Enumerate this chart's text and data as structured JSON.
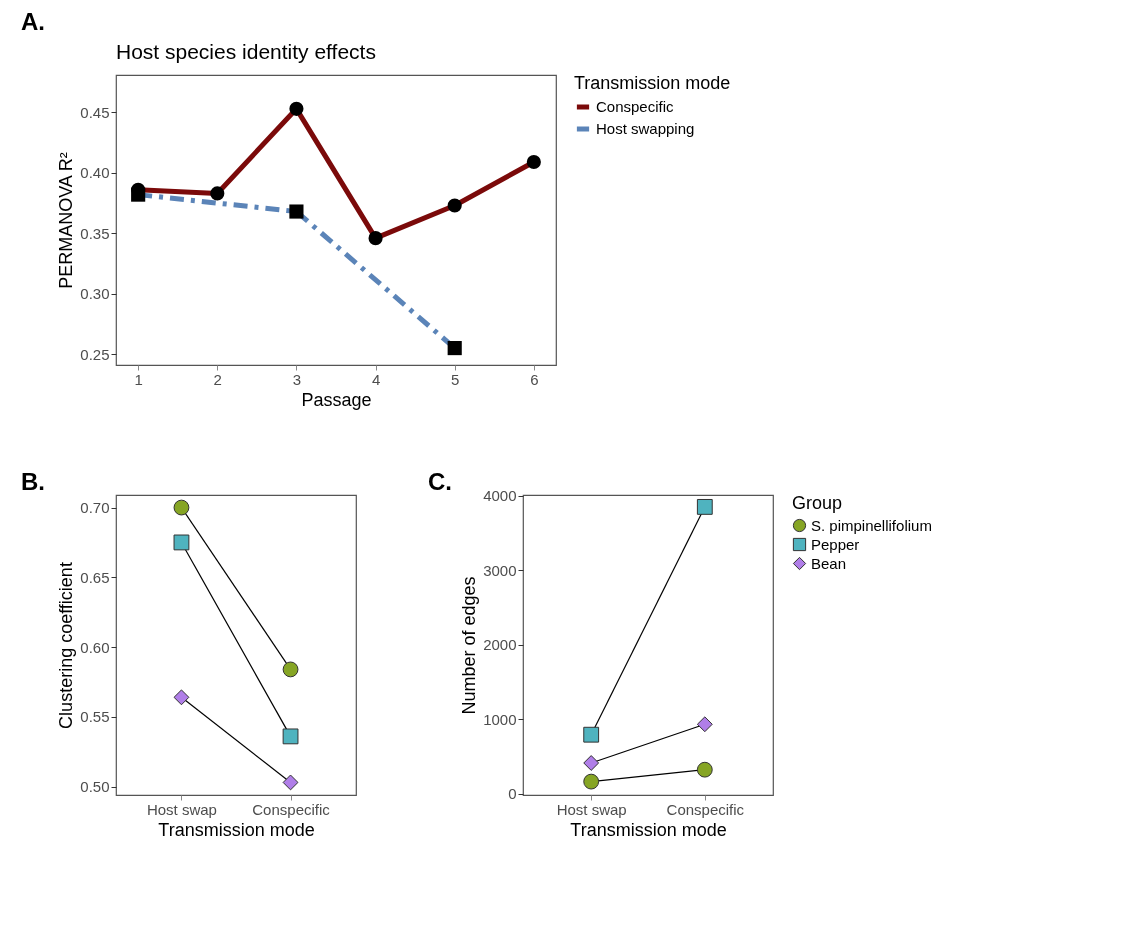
{
  "chart_data": [
    {
      "type": "line",
      "title": "Host species identity effects",
      "xlabel": "Passage",
      "ylabel": "PERMANOVA R²",
      "annotations": [
        "A."
      ],
      "legend": "right",
      "legend_title": "Transmission mode",
      "grid": false,
      "x": [
        1,
        2,
        3,
        4,
        5,
        6
      ],
      "xlim": [
        0.72,
        6.28
      ],
      "xticks": [
        1,
        2,
        3,
        4,
        5,
        6
      ],
      "ylim": [
        0.241,
        0.481
      ],
      "yticks": [
        0.25,
        {
          "value": 0.3,
          "label": "0.30"
        },
        0.35,
        {
          "value": 0.4,
          "label": "0.40"
        },
        0.45
      ],
      "series": [
        {
          "name": "Conspecific",
          "color": "#7b0a0a",
          "line_style": "solid",
          "marker": "circle",
          "values": [
            0.386,
            0.383,
            0.453,
            0.346,
            0.373,
            0.409
          ]
        },
        {
          "name": "Host swapping",
          "color": "#5b84b8",
          "line_style": "dashed",
          "marker": "square",
          "x": [
            1,
            3,
            5
          ],
          "values": [
            0.382,
            0.368,
            0.255
          ]
        }
      ]
    },
    {
      "type": "line",
      "xlabel": "Transmission mode",
      "ylabel": "Clustering coefficient",
      "annotations": [
        "B."
      ],
      "legend": "right",
      "grid": false,
      "categories": [
        "Host swap",
        "Conspecific"
      ],
      "ylim": [
        0.494,
        0.709
      ],
      "yticks": [
        {
          "value": 0.5,
          "label": "0.50"
        },
        0.55,
        {
          "value": 0.6,
          "label": "0.60"
        },
        0.65,
        {
          "value": 0.7,
          "label": "0.70"
        }
      ],
      "series": [
        {
          "name": "S. pimpinellifolium",
          "color": "#86a524",
          "marker": "circle",
          "values": [
            0.7,
            0.584
          ]
        },
        {
          "name": "Pepper",
          "color": "#4fb3bf",
          "marker": "square",
          "values": [
            0.675,
            0.536
          ]
        },
        {
          "name": "Bean",
          "color": "#b07ee8",
          "marker": "diamond",
          "values": [
            0.564,
            0.503
          ]
        }
      ]
    },
    {
      "type": "line",
      "xlabel": "Transmission mode",
      "ylabel": "Number of edges",
      "annotations": [
        "C."
      ],
      "legend": "right",
      "legend_title": "Group",
      "grid": false,
      "categories": [
        "Host swap",
        "Conspecific"
      ],
      "ylim": [
        -20,
        4010
      ],
      "yticks": [
        0,
        1000,
        2000,
        3000,
        4000
      ],
      "series": [
        {
          "name": "S. pimpinellifolium",
          "color": "#86a524",
          "marker": "circle",
          "values": [
            160,
            320
          ]
        },
        {
          "name": "Pepper",
          "color": "#4fb3bf",
          "marker": "square",
          "values": [
            790,
            3850
          ]
        },
        {
          "name": "Bean",
          "color": "#b07ee8",
          "marker": "diamond",
          "values": [
            410,
            930
          ]
        }
      ]
    }
  ]
}
